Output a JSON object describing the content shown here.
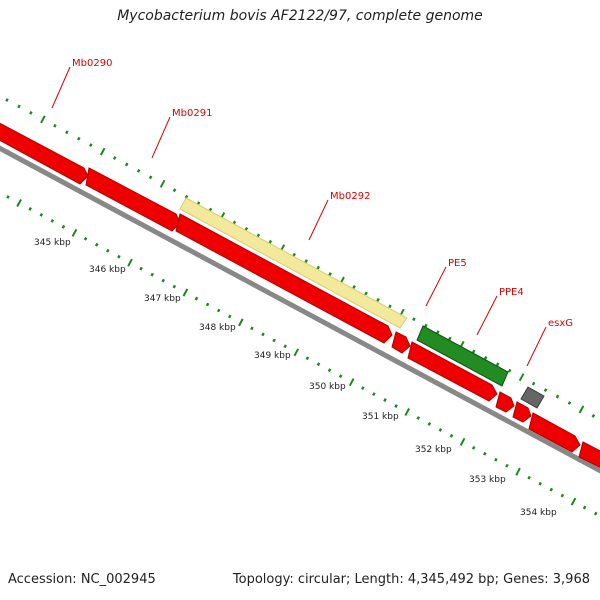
{
  "title": "Mycobacterium bovis AF2122/97, complete genome",
  "footer": {
    "accession": "Accession: NC_002945",
    "stats": "Topology: circular; Length: 4,345,492 bp; Genes: 3,968"
  },
  "colors": {
    "background": "#ffffff",
    "cds": "#ee0000",
    "pe_ppe_highlight": "#f3e99a",
    "pe_ppe_gene": "#228b22",
    "esx_gene": "#666666",
    "backbone": "#888888",
    "tick": "#1a8a1a",
    "gene_label": "#dd0000"
  },
  "genes": [
    {
      "label": "Mb0290"
    },
    {
      "label": "Mb0291"
    },
    {
      "label": "Mb0292"
    },
    {
      "label": "PE5"
    },
    {
      "label": "PPE4"
    },
    {
      "label": "esxG"
    }
  ],
  "scale": {
    "unit": "kbp",
    "labels": [
      "345 kbp",
      "346 kbp",
      "347 kbp",
      "348 kbp",
      "349 kbp",
      "350 kbp",
      "351 kbp",
      "352 kbp",
      "353 kbp",
      "354 kbp"
    ]
  }
}
